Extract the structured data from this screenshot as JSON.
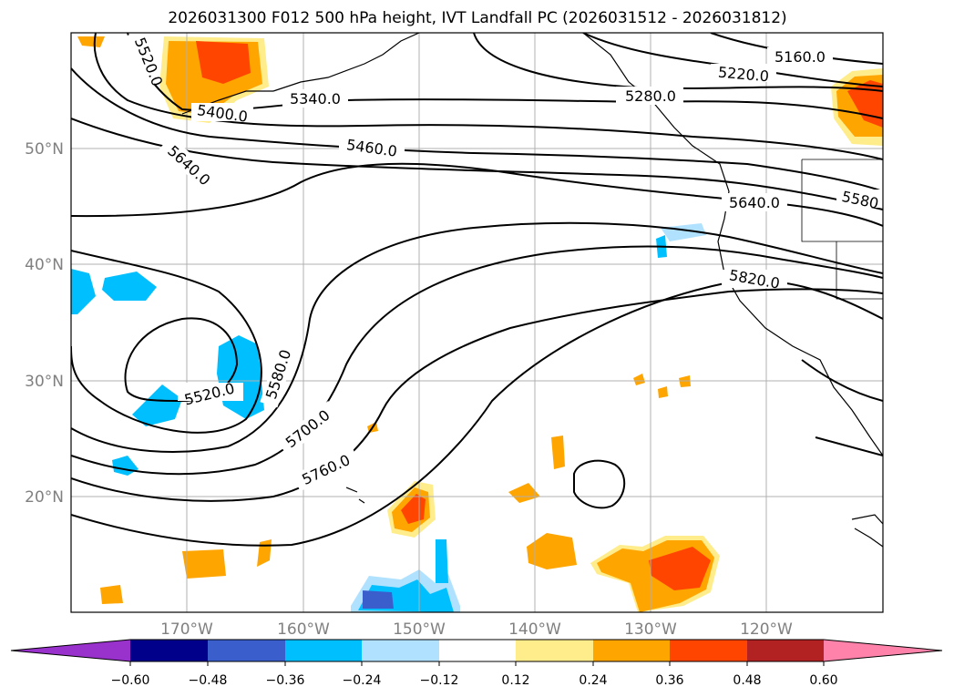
{
  "title": "2026031300 F012 500 hPa height, IVT Landfall PC (2026031512 - 2026031812)",
  "lat_labels": [
    "50°N",
    "40°N",
    "30°N",
    "20°N"
  ],
  "lon_labels": [
    "170°W",
    "160°W",
    "150°W",
    "140°W",
    "130°W",
    "120°W"
  ],
  "colorbar": {
    "ticks": [
      "−0.60",
      "−0.48",
      "−0.36",
      "−0.24",
      "−0.12",
      "0.12",
      "0.24",
      "0.36",
      "0.48",
      "0.60"
    ],
    "colors": [
      "#9932cc",
      "#00008b",
      "#3a5fcd",
      "#00bfff",
      "#b0e2ff",
      "#ffffff",
      "#ffec8b",
      "#ffa500",
      "#ff4500",
      "#b22222",
      "#ff82ab"
    ]
  },
  "contour_labels": {
    "l5520a": "5520.0",
    "l5400": "5400.0",
    "l5340": "5340.0",
    "l5460": "5460.0",
    "l5640a": "5640.0",
    "l5160": "5160.0",
    "l5220": "5220.0",
    "l5280": "5280.0",
    "l5580a": "5580",
    "l5640b": "5640.0",
    "l5820": "5820.0",
    "l5520b": "5520.0",
    "l5580b": "5580.0",
    "l5700": "5700.0",
    "l5760": "5760.0"
  }
}
